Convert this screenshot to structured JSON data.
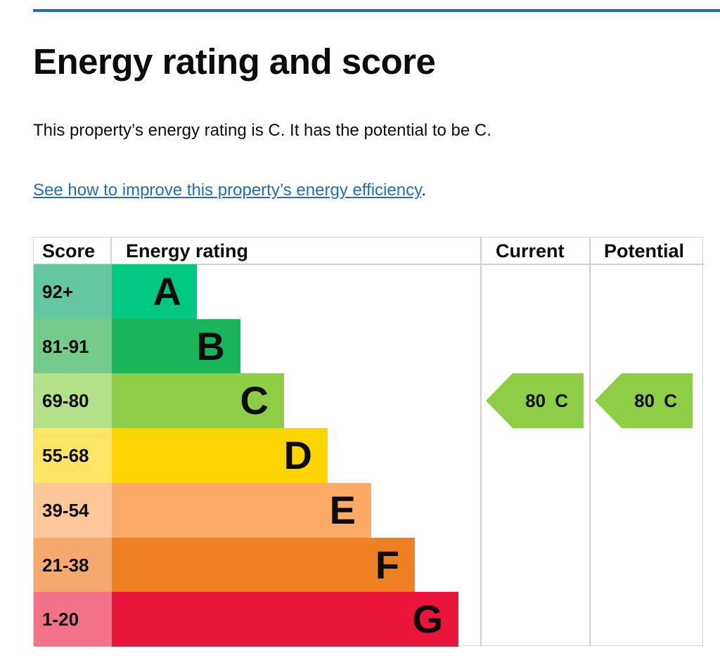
{
  "title": "Energy rating and score",
  "summary": "This property’s energy rating is C. It has the potential to be C.",
  "link": {
    "text": "See how to improve this property’s energy efficiency",
    "suffix": "."
  },
  "table": {
    "headers": {
      "score": "Score",
      "rating": "Energy rating",
      "current": "Current",
      "potential": "Potential"
    },
    "rows": [
      {
        "score": "92+",
        "band": "A",
        "color": "#00c781",
        "score_color": "#64c7a0"
      },
      {
        "score": "81-91",
        "band": "B",
        "color": "#19b459",
        "score_color": "#75cb8a"
      },
      {
        "score": "69-80",
        "band": "C",
        "color": "#8dce46",
        "score_color": "#b5e08a"
      },
      {
        "score": "55-68",
        "band": "D",
        "color": "#ffd500",
        "score_color": "#ffe566"
      },
      {
        "score": "39-54",
        "band": "E",
        "color": "#fcaa65",
        "score_color": "#fdc79a"
      },
      {
        "score": "21-38",
        "band": "F",
        "color": "#ef8023",
        "score_color": "#f4aa6f"
      },
      {
        "score": "1-20",
        "band": "G",
        "color": "#e9153b",
        "score_color": "#f27289"
      }
    ],
    "current": {
      "label": "80 C",
      "score": 80,
      "band": "C"
    },
    "potential": {
      "label": "80 C",
      "score": 80,
      "band": "C"
    }
  }
}
